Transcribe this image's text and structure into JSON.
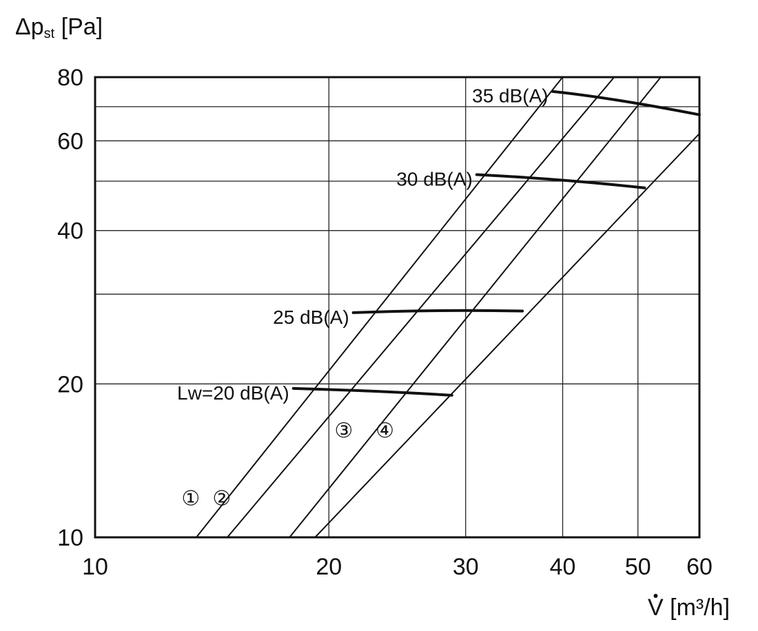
{
  "chart_data": {
    "type": "line",
    "title": "",
    "ylabel": {
      "main": "Δp",
      "sub": "st",
      "unit": " [Pa]"
    },
    "xlabel": {
      "main": "V",
      "unit": " [m³/h]"
    },
    "x_scale": "log",
    "y_scale": "log",
    "xlim": [
      10,
      60
    ],
    "ylim": [
      10,
      80
    ],
    "x_ticks": [
      {
        "value": 10,
        "label": "10"
      },
      {
        "value": 20,
        "label": "20"
      },
      {
        "value": 30,
        "label": "30"
      },
      {
        "value": 40,
        "label": "40"
      },
      {
        "value": 50,
        "label": "50"
      },
      {
        "value": 60,
        "label": "60"
      }
    ],
    "y_ticks": [
      {
        "value": 10,
        "label": "10"
      },
      {
        "value": 20,
        "label": "20"
      },
      {
        "value": 40,
        "label": "40"
      },
      {
        "value": 60,
        "label": "60"
      },
      {
        "value": 80,
        "label": "80"
      }
    ],
    "x_grid": [
      20,
      30,
      40,
      50
    ],
    "y_grid": [
      20,
      30,
      40,
      50,
      60,
      70
    ],
    "grid": true,
    "series": [
      {
        "label": "①",
        "points": [
          [
            13.5,
            10
          ],
          [
            40,
            80
          ]
        ]
      },
      {
        "label": "②",
        "points": [
          [
            14.8,
            10
          ],
          [
            46.6,
            80
          ]
        ]
      },
      {
        "label": "③",
        "points": [
          [
            17.8,
            10
          ],
          [
            53.5,
            80
          ]
        ]
      },
      {
        "label": "④",
        "points": [
          [
            19.2,
            10
          ],
          [
            60,
            62
          ]
        ]
      }
    ],
    "noise_curves": [
      {
        "label": "Lw=20 dB(A)",
        "points": [
          [
            18.0,
            19.6
          ],
          [
            23.0,
            19.4
          ],
          [
            28.8,
            19.0
          ]
        ]
      },
      {
        "label": "25 dB(A)",
        "points": [
          [
            21.5,
            27.6
          ],
          [
            27.5,
            28.0
          ],
          [
            35.5,
            27.8
          ]
        ]
      },
      {
        "label": "30 dB(A)",
        "points": [
          [
            31.0,
            51.5
          ],
          [
            40.0,
            50.5
          ],
          [
            51.0,
            48.5
          ]
        ]
      },
      {
        "label": "35 dB(A)",
        "points": [
          [
            38.8,
            75.0
          ],
          [
            46.0,
            73.0
          ],
          [
            60.0,
            67.5
          ]
        ]
      }
    ]
  }
}
